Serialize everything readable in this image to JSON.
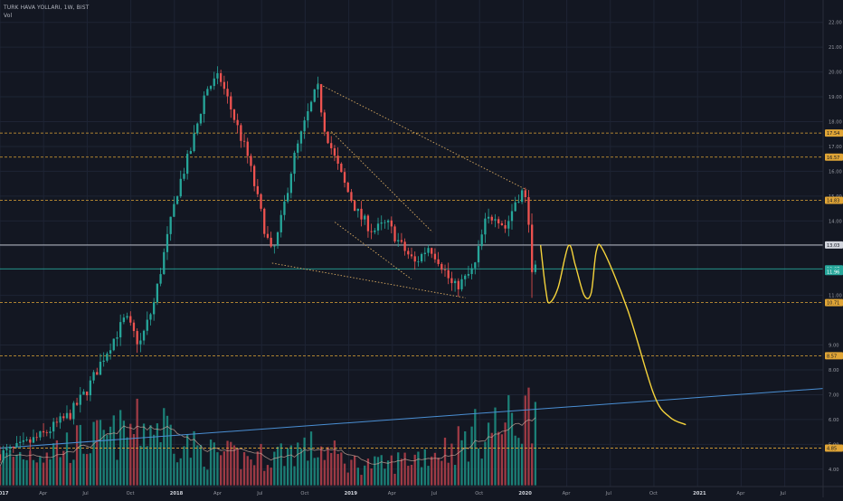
{
  "header": {
    "title": "TURK HAVA YOLLARI, 1W, BIST",
    "volume_label": "Vol"
  },
  "colors": {
    "background": "#131722",
    "grid": "#1e2434",
    "axis_text": "#9598a1",
    "up": "#26a69a",
    "down": "#ef5350",
    "up_volume": "#1b7f76",
    "down_volume": "#9e3a45",
    "level_line": "#e0a536",
    "trendline_dotted": "#d6a860",
    "white_line": "#d1d4dc",
    "blue_line": "#4a8fd4",
    "freehand": "#f5d33b",
    "volume_ma": "#c9a79b",
    "price_line": "#26a69a"
  },
  "chart_data": {
    "type": "candlestick",
    "title": "TURK HAVA YOLLARI, 1W, BIST",
    "y_axis": {
      "side": "right",
      "range": [
        3.3,
        22.9
      ],
      "ticks": [
        4.0,
        5.0,
        6.0,
        7.0,
        8.0,
        9.0,
        11.0,
        13.0,
        14.0,
        15.0,
        16.0,
        17.0,
        18.0,
        19.0,
        20.0,
        21.0,
        22.0
      ]
    },
    "x_axis": {
      "ticks": [
        {
          "t": 0,
          "label": "2017"
        },
        {
          "t": 0.25,
          "label": "Apr"
        },
        {
          "t": 0.5,
          "label": "Jul"
        },
        {
          "t": 0.75,
          "label": "Oct"
        },
        {
          "t": 1,
          "label": "2018"
        },
        {
          "t": 1.25,
          "label": "Apr"
        },
        {
          "t": 1.5,
          "label": "Jul"
        },
        {
          "t": 1.75,
          "label": "Oct"
        },
        {
          "t": 2,
          "label": "2019"
        },
        {
          "t": 2.25,
          "label": "Apr"
        },
        {
          "t": 2.5,
          "label": "Jul"
        },
        {
          "t": 2.75,
          "label": "Oct"
        },
        {
          "t": 3,
          "label": "2020"
        },
        {
          "t": 3.25,
          "label": "Apr"
        },
        {
          "t": 3.5,
          "label": "Jul"
        },
        {
          "t": 3.75,
          "label": "Oct"
        },
        {
          "t": 4,
          "label": "2021"
        },
        {
          "t": 4.25,
          "label": "Apr"
        },
        {
          "t": 4.5,
          "label": "Jul"
        }
      ],
      "bold_labels": [
        "2017",
        "2018",
        "2019",
        "2020",
        "2021"
      ]
    },
    "price_anchors": [
      [
        0.0,
        4.6
      ],
      [
        0.12,
        4.9
      ],
      [
        0.25,
        5.4
      ],
      [
        0.4,
        6.2
      ],
      [
        0.5,
        7.2
      ],
      [
        0.6,
        8.6
      ],
      [
        0.72,
        10.1
      ],
      [
        0.8,
        9.0
      ],
      [
        0.88,
        10.6
      ],
      [
        0.95,
        13.0
      ],
      [
        1.02,
        15.3
      ],
      [
        1.1,
        17.0
      ],
      [
        1.18,
        19.3
      ],
      [
        1.26,
        19.8
      ],
      [
        1.33,
        18.4
      ],
      [
        1.42,
        16.6
      ],
      [
        1.52,
        13.6
      ],
      [
        1.56,
        12.6
      ],
      [
        1.6,
        13.6
      ],
      [
        1.68,
        16.4
      ],
      [
        1.76,
        18.2
      ],
      [
        1.82,
        19.4
      ],
      [
        1.86,
        17.8
      ],
      [
        1.92,
        16.5
      ],
      [
        1.98,
        15.4
      ],
      [
        2.06,
        14.2
      ],
      [
        2.14,
        13.6
      ],
      [
        2.22,
        13.9
      ],
      [
        2.3,
        13.0
      ],
      [
        2.38,
        12.3
      ],
      [
        2.46,
        13.0
      ],
      [
        2.52,
        12.4
      ],
      [
        2.6,
        11.3
      ],
      [
        2.66,
        11.6
      ],
      [
        2.72,
        12.1
      ],
      [
        2.78,
        13.9
      ],
      [
        2.84,
        14.3
      ],
      [
        2.9,
        13.7
      ],
      [
        2.96,
        14.9
      ],
      [
        3.0,
        15.2
      ],
      [
        3.03,
        14.3
      ],
      [
        3.05,
        11.7
      ],
      [
        3.07,
        12.0
      ]
    ],
    "volume_anchors": [
      [
        0.0,
        4.5
      ],
      [
        0.15,
        4.7
      ],
      [
        0.3,
        4.9
      ],
      [
        0.5,
        5.2
      ],
      [
        0.65,
        5.4
      ],
      [
        0.8,
        5.8
      ],
      [
        0.95,
        5.9
      ],
      [
        1.05,
        5.1
      ],
      [
        1.2,
        4.7
      ],
      [
        1.4,
        4.5
      ],
      [
        1.55,
        4.6
      ],
      [
        1.7,
        4.9
      ],
      [
        1.85,
        4.9
      ],
      [
        2.0,
        4.3
      ],
      [
        2.2,
        4.2
      ],
      [
        2.4,
        4.6
      ],
      [
        2.6,
        5.0
      ],
      [
        2.75,
        5.6
      ],
      [
        2.9,
        5.9
      ],
      [
        3.0,
        6.2
      ],
      [
        3.05,
        6.8
      ]
    ],
    "horizontal_levels": [
      {
        "value": 17.54,
        "style": "dashed",
        "color": "level_line",
        "label": "17.54"
      },
      {
        "value": 16.57,
        "style": "dashed",
        "color": "level_line",
        "label": "16.57"
      },
      {
        "value": 14.83,
        "style": "dashed",
        "color": "level_line",
        "label": "14.83"
      },
      {
        "value": 13.03,
        "style": "solid",
        "color": "white_line",
        "label": "13.03"
      },
      {
        "value": 12.07,
        "style": "solid",
        "color": "price_line",
        "label": "12.07"
      },
      {
        "value": 11.96,
        "style": "none",
        "color": "price_line",
        "label": "11.96"
      },
      {
        "value": 10.71,
        "style": "dashed",
        "color": "level_line",
        "label": "10.71"
      },
      {
        "value": 8.57,
        "style": "dashed",
        "color": "level_line",
        "label": "8.57"
      },
      {
        "value": 4.85,
        "style": "dashed",
        "color": "level_line",
        "label": "4.85"
      }
    ],
    "trendlines": [
      {
        "style": "dotted",
        "points": [
          [
            1.82,
            19.55
          ],
          [
            3.02,
            15.25
          ]
        ]
      },
      {
        "style": "dotted",
        "points": [
          [
            1.56,
            12.3
          ],
          [
            2.67,
            10.9
          ]
        ]
      },
      {
        "style": "dotted",
        "points": [
          [
            1.9,
            17.6
          ],
          [
            2.48,
            13.55
          ]
        ]
      },
      {
        "style": "dotted",
        "points": [
          [
            1.92,
            13.95
          ],
          [
            2.36,
            11.65
          ]
        ]
      },
      {
        "style": "solid",
        "color": "blue_line",
        "points": [
          [
            0.0,
            4.85
          ],
          [
            4.72,
            7.25
          ]
        ]
      }
    ],
    "freehand_projection": [
      [
        3.1,
        13.0
      ],
      [
        3.13,
        11.2
      ],
      [
        3.15,
        10.7
      ],
      [
        3.2,
        11.3
      ],
      [
        3.26,
        13.0
      ],
      [
        3.3,
        12.2
      ],
      [
        3.35,
        11.0
      ],
      [
        3.39,
        11.1
      ],
      [
        3.42,
        12.8
      ],
      [
        3.46,
        12.8
      ],
      [
        3.6,
        10.4
      ],
      [
        3.75,
        7.0
      ],
      [
        3.84,
        6.1
      ],
      [
        3.93,
        5.8
      ]
    ]
  }
}
